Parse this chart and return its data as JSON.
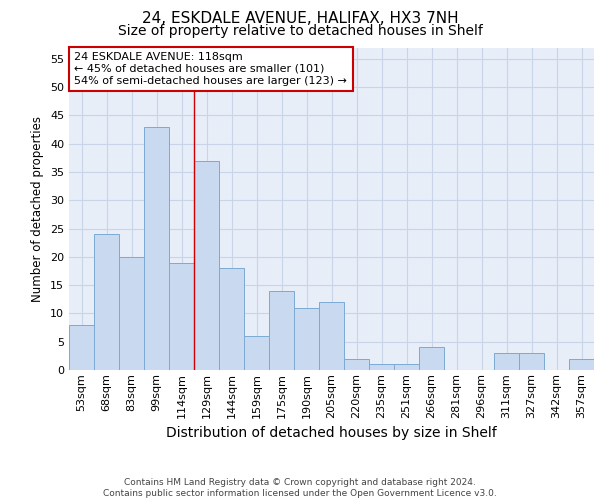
{
  "title1": "24, ESKDALE AVENUE, HALIFAX, HX3 7NH",
  "title2": "Size of property relative to detached houses in Shelf",
  "xlabel": "Distribution of detached houses by size in Shelf",
  "ylabel": "Number of detached properties",
  "categories": [
    "53sqm",
    "68sqm",
    "83sqm",
    "99sqm",
    "114sqm",
    "129sqm",
    "144sqm",
    "159sqm",
    "175sqm",
    "190sqm",
    "205sqm",
    "220sqm",
    "235sqm",
    "251sqm",
    "266sqm",
    "281sqm",
    "296sqm",
    "311sqm",
    "327sqm",
    "342sqm",
    "357sqm"
  ],
  "values": [
    8,
    24,
    20,
    43,
    19,
    37,
    18,
    6,
    14,
    11,
    12,
    2,
    1,
    1,
    4,
    0,
    0,
    3,
    3,
    0,
    2
  ],
  "bar_color": "#c9daf0",
  "bar_edgecolor": "#7baad4",
  "bar_linewidth": 0.7,
  "vline_x": 4.5,
  "vline_color": "#cc0000",
  "annotation_text": "24 ESKDALE AVENUE: 118sqm\n← 45% of detached houses are smaller (101)\n54% of semi-detached houses are larger (123) →",
  "annotation_box_color": "#ffffff",
  "annotation_box_edgecolor": "#cc0000",
  "ylim": [
    0,
    57
  ],
  "yticks": [
    0,
    5,
    10,
    15,
    20,
    25,
    30,
    35,
    40,
    45,
    50,
    55
  ],
  "grid_color": "#c8d4e8",
  "background_color": "#e8eef8",
  "footer_line1": "Contains HM Land Registry data © Crown copyright and database right 2024.",
  "footer_line2": "Contains public sector information licensed under the Open Government Licence v3.0.",
  "title1_fontsize": 11,
  "title2_fontsize": 10,
  "xlabel_fontsize": 10,
  "ylabel_fontsize": 8.5,
  "tick_fontsize": 8,
  "annotation_fontsize": 8,
  "footer_fontsize": 6.5
}
